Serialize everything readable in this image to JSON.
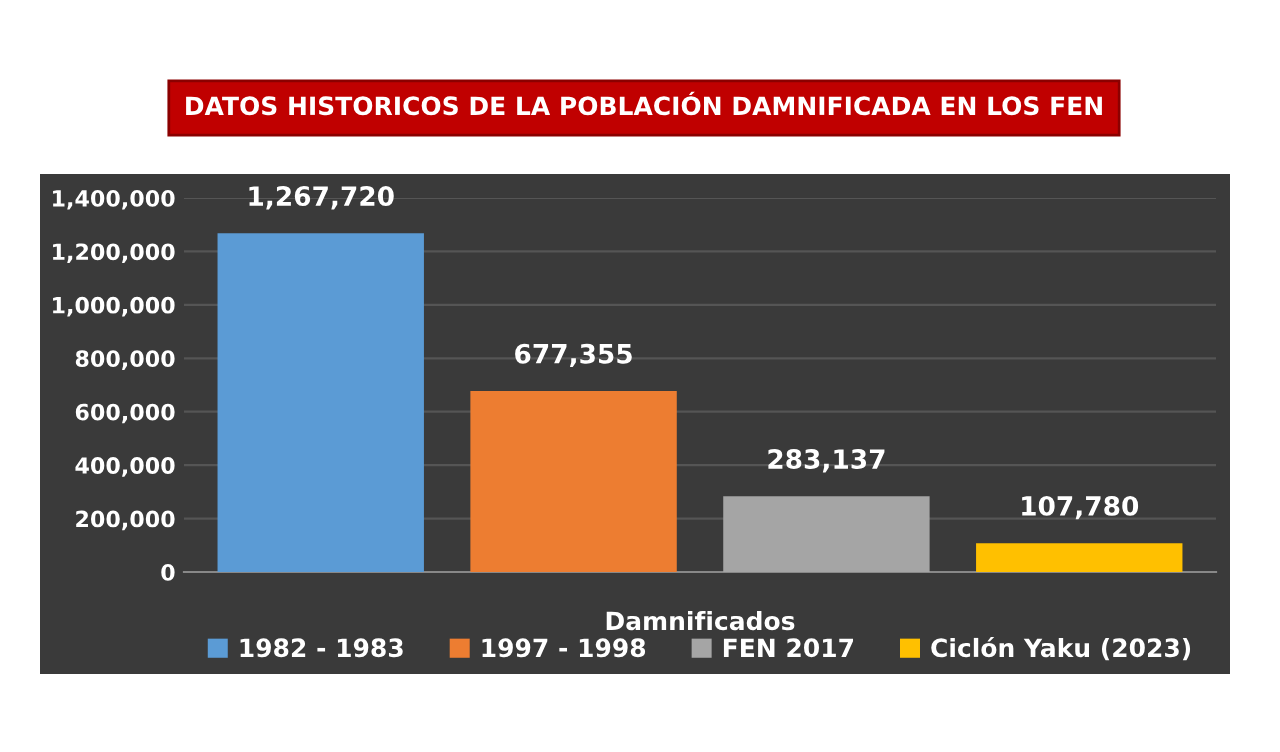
{
  "chart_data": {
    "type": "bar",
    "title": "DATOS HISTORICOS DE LA POBLACIÓN DAMNIFICADA EN LOS FEN",
    "categories": [
      "Damnificados"
    ],
    "series": [
      {
        "name": "1982 - 1983",
        "color": "#5b9bd5",
        "values": [
          1267720
        ],
        "value_labels": [
          "1,267,720"
        ]
      },
      {
        "name": "1997 - 1998",
        "color": "#ed7d31",
        "values": [
          677355
        ],
        "value_labels": [
          "677,355"
        ]
      },
      {
        "name": "FEN 2017",
        "color": "#a5a5a5",
        "values": [
          283137
        ],
        "value_labels": [
          "283,137"
        ]
      },
      {
        "name": "Ciclón Yaku (2023)",
        "color": "#ffc000",
        "values": [
          107780
        ],
        "value_labels": [
          "107,780"
        ]
      }
    ],
    "ylim": [
      0,
      1400000
    ],
    "yticks": [
      0,
      {
        "value": 200000,
        "label": "200,000"
      },
      {
        "value": 400000,
        "label": "400,000"
      },
      {
        "value": 600000,
        "label": "600,000"
      },
      {
        "value": 800000,
        "label": "800,000"
      },
      {
        "value": 1000000,
        "label": "1,000,000"
      },
      {
        "value": 1200000,
        "label": "1,200,000"
      },
      {
        "value": 1400000,
        "label": "1,400,000"
      }
    ],
    "grid": "y",
    "legend": "bottom"
  }
}
